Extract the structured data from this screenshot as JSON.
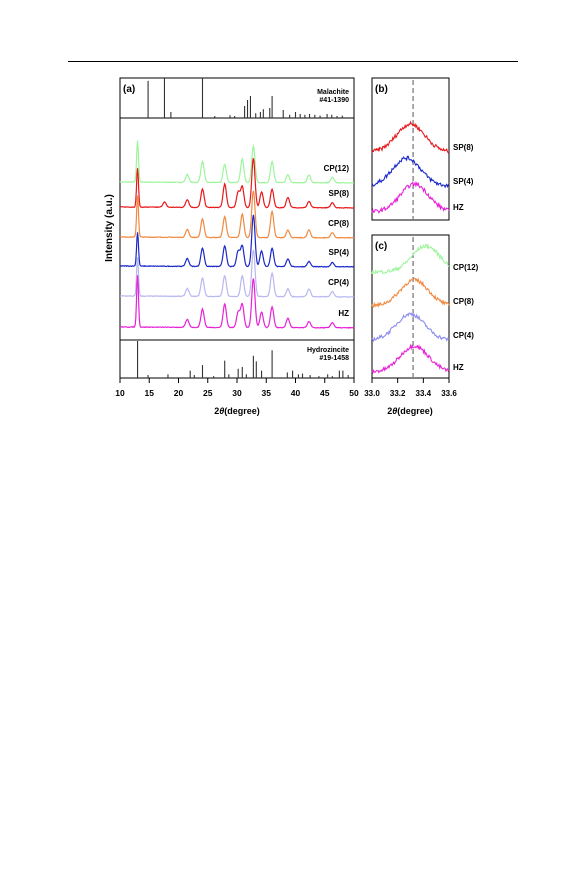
{
  "chart_data": [
    {
      "panel": "a",
      "panel_label": "(a)",
      "type": "line",
      "xlabel_italic": "θ",
      "xlabel_prefix": "2",
      "xlabel_suffix": "(degree)",
      "ylabel": "Intensity (a.u.)",
      "xlim": [
        10,
        50
      ],
      "xticks": [
        10,
        15,
        20,
        25,
        30,
        35,
        40,
        45,
        50
      ],
      "reference_top": {
        "name": "Malachite",
        "card": "#41-1390",
        "peaks": [
          [
            14.8,
            0.93
          ],
          [
            17.6,
            1.0
          ],
          [
            18.7,
            0.15
          ],
          [
            24.1,
            1.0
          ],
          [
            26.2,
            0.05
          ],
          [
            28.8,
            0.07
          ],
          [
            29.6,
            0.05
          ],
          [
            31.3,
            0.3
          ],
          [
            31.8,
            0.45
          ],
          [
            32.3,
            0.55
          ],
          [
            33.2,
            0.12
          ],
          [
            34.0,
            0.15
          ],
          [
            34.5,
            0.22
          ],
          [
            35.6,
            0.25
          ],
          [
            36.0,
            0.55
          ],
          [
            37.9,
            0.2
          ],
          [
            39.0,
            0.08
          ],
          [
            40.0,
            0.15
          ],
          [
            40.8,
            0.1
          ],
          [
            41.6,
            0.08
          ],
          [
            42.4,
            0.1
          ],
          [
            43.3,
            0.08
          ],
          [
            44.2,
            0.06
          ],
          [
            45.4,
            0.1
          ],
          [
            46.2,
            0.08
          ],
          [
            47.1,
            0.05
          ],
          [
            48.0,
            0.06
          ]
        ]
      },
      "reference_bottom": {
        "name": "Hydrozincite",
        "card": "#19-1458",
        "peaks": [
          [
            13.0,
            1.0
          ],
          [
            14.8,
            0.08
          ],
          [
            18.2,
            0.1
          ],
          [
            22.0,
            0.2
          ],
          [
            22.7,
            0.08
          ],
          [
            24.1,
            0.35
          ],
          [
            26.0,
            0.05
          ],
          [
            27.9,
            0.47
          ],
          [
            28.6,
            0.1
          ],
          [
            30.2,
            0.25
          ],
          [
            30.9,
            0.3
          ],
          [
            31.6,
            0.1
          ],
          [
            32.8,
            0.6
          ],
          [
            33.3,
            0.45
          ],
          [
            34.2,
            0.2
          ],
          [
            36.0,
            0.75
          ],
          [
            38.6,
            0.15
          ],
          [
            39.5,
            0.2
          ],
          [
            40.5,
            0.1
          ],
          [
            41.2,
            0.12
          ],
          [
            42.5,
            0.08
          ],
          [
            44.0,
            0.05
          ],
          [
            45.5,
            0.1
          ],
          [
            46.3,
            0.05
          ],
          [
            47.5,
            0.2
          ],
          [
            48.1,
            0.2
          ],
          [
            49.0,
            0.08
          ]
        ]
      },
      "series": [
        {
          "name": "CP(12)",
          "color": "#9df59b",
          "peaks": [
            [
              13.0,
              0.8
            ],
            [
              21.5,
              0.15
            ],
            [
              24.1,
              0.4
            ],
            [
              27.9,
              0.35
            ],
            [
              30.9,
              0.45
            ],
            [
              32.8,
              0.7
            ],
            [
              36.0,
              0.4
            ],
            [
              38.7,
              0.15
            ],
            [
              42.3,
              0.15
            ],
            [
              46.3,
              0.1
            ]
          ]
        },
        {
          "name": "SP(8)",
          "color": "#e8181a",
          "peaks": [
            [
              13.0,
              0.75
            ],
            [
              17.6,
              0.1
            ],
            [
              21.5,
              0.15
            ],
            [
              24.1,
              0.35
            ],
            [
              27.9,
              0.45
            ],
            [
              30.2,
              0.3
            ],
            [
              30.9,
              0.4
            ],
            [
              32.8,
              0.95
            ],
            [
              34.2,
              0.3
            ],
            [
              36.0,
              0.35
            ],
            [
              38.7,
              0.2
            ],
            [
              42.3,
              0.12
            ],
            [
              46.3,
              0.1
            ]
          ]
        },
        {
          "name": "CP(8)",
          "color": "#f08a40",
          "peaks": [
            [
              13.0,
              0.8
            ],
            [
              21.5,
              0.15
            ],
            [
              24.1,
              0.35
            ],
            [
              27.9,
              0.4
            ],
            [
              30.9,
              0.45
            ],
            [
              32.8,
              0.9
            ],
            [
              36.0,
              0.5
            ],
            [
              38.7,
              0.15
            ],
            [
              42.3,
              0.15
            ],
            [
              46.3,
              0.1
            ]
          ]
        },
        {
          "name": "SP(4)",
          "color": "#1a28c8",
          "peaks": [
            [
              13.0,
              0.65
            ],
            [
              21.5,
              0.15
            ],
            [
              24.1,
              0.35
            ],
            [
              27.9,
              0.4
            ],
            [
              30.2,
              0.3
            ],
            [
              30.9,
              0.4
            ],
            [
              32.8,
              1.0
            ],
            [
              34.2,
              0.3
            ],
            [
              36.0,
              0.35
            ],
            [
              38.7,
              0.15
            ],
            [
              42.3,
              0.1
            ],
            [
              46.3,
              0.08
            ]
          ]
        },
        {
          "name": "CP(4)",
          "color": "#b8b8f0",
          "peaks": [
            [
              13.0,
              0.75
            ],
            [
              21.5,
              0.15
            ],
            [
              24.1,
              0.35
            ],
            [
              27.9,
              0.4
            ],
            [
              30.9,
              0.4
            ],
            [
              32.8,
              0.9
            ],
            [
              36.0,
              0.45
            ],
            [
              38.7,
              0.15
            ],
            [
              42.3,
              0.15
            ],
            [
              46.3,
              0.1
            ]
          ]
        },
        {
          "name": "HZ",
          "color": "#e622d6",
          "peaks": [
            [
              13.0,
              1.0
            ],
            [
              21.5,
              0.15
            ],
            [
              24.1,
              0.35
            ],
            [
              27.9,
              0.45
            ],
            [
              30.2,
              0.3
            ],
            [
              30.9,
              0.45
            ],
            [
              32.8,
              0.95
            ],
            [
              34.2,
              0.3
            ],
            [
              36.0,
              0.4
            ],
            [
              38.7,
              0.18
            ],
            [
              42.3,
              0.12
            ],
            [
              46.3,
              0.1
            ]
          ]
        }
      ]
    },
    {
      "panel": "b",
      "panel_label": "(b)",
      "type": "line",
      "xlim": [
        33.0,
        33.6
      ],
      "reference_line_x": 33.32,
      "series": [
        {
          "name": "SP(8)",
          "color": "#e8181a",
          "peak_center": 33.3
        },
        {
          "name": "SP(4)",
          "color": "#1a28c8",
          "peak_center": 33.27
        },
        {
          "name": "HZ",
          "color": "#e622d6",
          "peak_center": 33.33
        }
      ]
    },
    {
      "panel": "c",
      "panel_label": "(c)",
      "type": "line",
      "xlabel_italic": "θ",
      "xlabel_prefix": "2",
      "xlabel_suffix": "(degree)",
      "xlim": [
        33.0,
        33.6
      ],
      "xticks": [
        "33.0",
        "33.2",
        "33.4",
        "33.6"
      ],
      "reference_line_x": 33.32,
      "series": [
        {
          "name": "CP(12)",
          "color": "#9df59b",
          "peak_center": 33.42
        },
        {
          "name": "CP(8)",
          "color": "#f08a40",
          "peak_center": 33.33
        },
        {
          "name": "CP(4)",
          "color": "#8c8cf0",
          "peak_center": 33.3
        },
        {
          "name": "HZ",
          "color": "#e622d6",
          "peak_center": 33.33
        }
      ]
    }
  ]
}
